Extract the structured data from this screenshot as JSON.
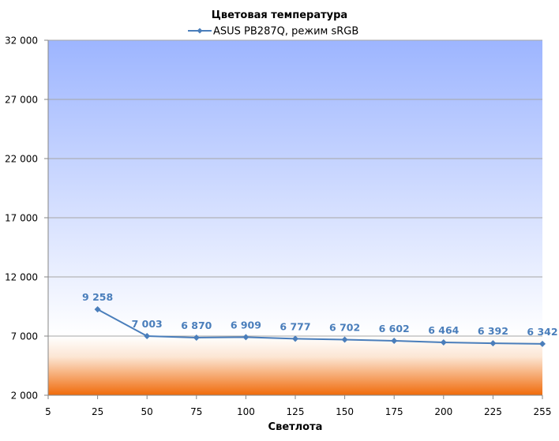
{
  "chart_data": {
    "type": "line",
    "title": "Цветовая температура",
    "xlabel": "Светлота",
    "ylabel": "",
    "x_ticks": [
      "5",
      "25",
      "50",
      "75",
      "100",
      "125",
      "150",
      "175",
      "200",
      "225",
      "255"
    ],
    "y_ticks": [
      "2 000",
      "7 000",
      "12 000",
      "17 000",
      "22 000",
      "27 000",
      "32 000"
    ],
    "ylim": [
      2000,
      32000
    ],
    "x": [
      25,
      50,
      75,
      100,
      125,
      150,
      175,
      200,
      225,
      255
    ],
    "series": [
      {
        "name": "ASUS PB287Q, режим sRGB",
        "values": [
          9258,
          7003,
          6870,
          6909,
          6777,
          6702,
          6602,
          6464,
          6392,
          6342
        ],
        "labels": [
          "9 258",
          "7 003",
          "6 870",
          "6 909",
          "6 777",
          "6 702",
          "6 602",
          "6 464",
          "6 392",
          "6 342"
        ],
        "color": "#4A7EBB"
      }
    ],
    "grid": true,
    "legend_position": "top",
    "background": {
      "upper_gradient": [
        "#9DB5FF",
        "#FFFFFF"
      ],
      "lower_gradient": [
        "#FFFFFF",
        "#F06A0A"
      ],
      "split_value": 7000
    }
  }
}
